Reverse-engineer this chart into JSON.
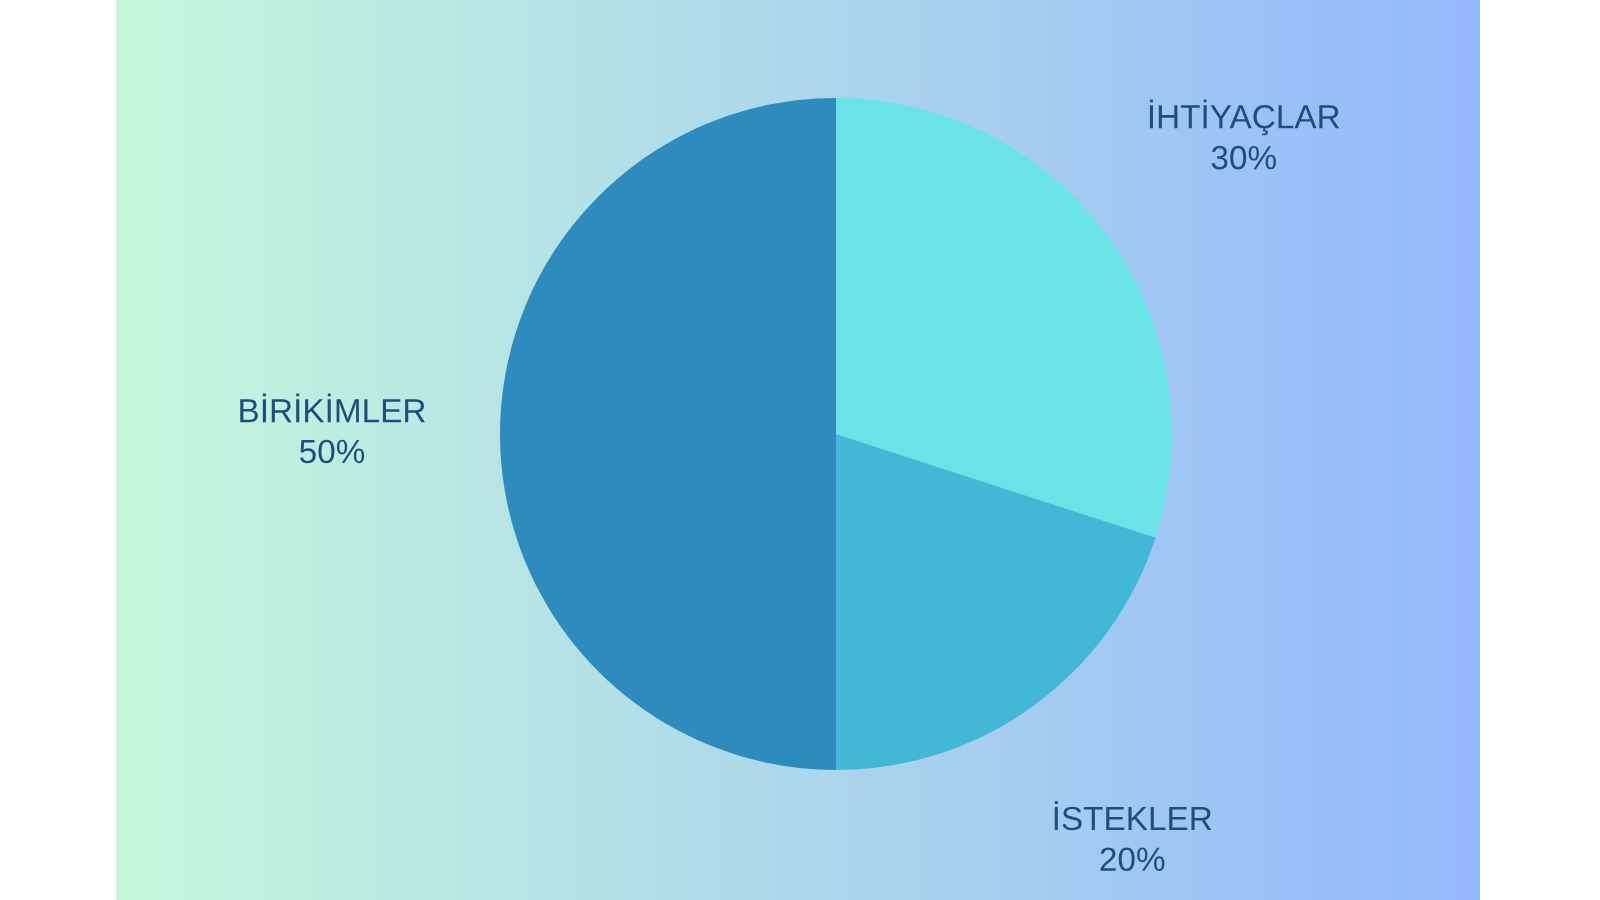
{
  "chart_data": {
    "type": "pie",
    "categories": [
      "İHTİYAÇLAR",
      "İSTEKLER",
      "BİRİKİMLER"
    ],
    "values": [
      30,
      20,
      50
    ],
    "colors": [
      "#6ae3e6",
      "#42b7d6",
      "#2e8bbd"
    ],
    "value_labels": [
      "30%",
      "20%",
      "50%"
    ]
  }
}
